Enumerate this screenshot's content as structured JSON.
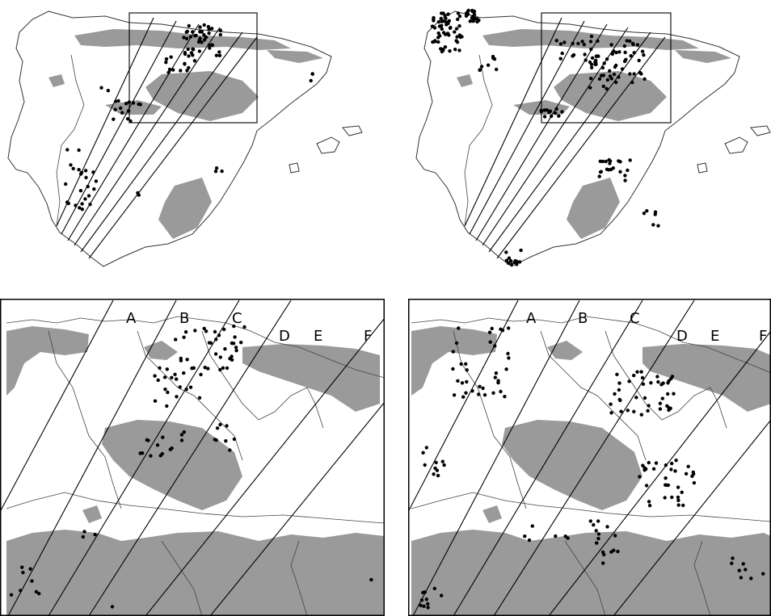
{
  "zone_labels": [
    "A",
    "B",
    "C",
    "D",
    "E",
    "F"
  ],
  "colors": {
    "mountains": "#9a9a9a",
    "points": "#000000",
    "land": "#ffffff",
    "lines": "#000000"
  },
  "panels": [
    "overview-left",
    "overview-right",
    "detail-left",
    "detail-right"
  ]
}
